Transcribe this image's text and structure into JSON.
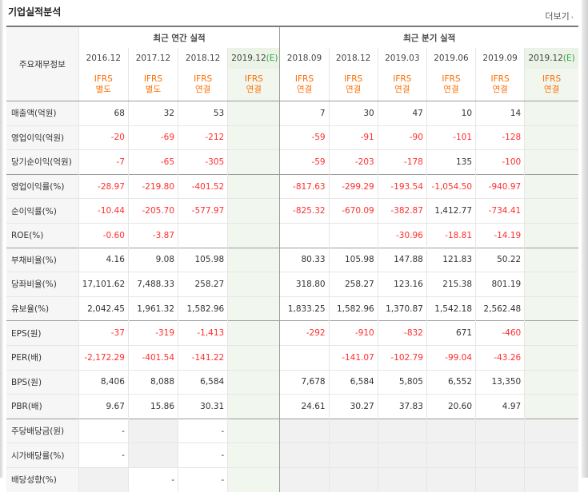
{
  "header": {
    "title": "기업실적분석",
    "more_label": "더보기",
    "more_arrow": "›"
  },
  "table": {
    "corner_label": "주요재무정보",
    "annual_label": "최근 연간 실적",
    "quarter_label": "최근 분기 실적",
    "columns": [
      {
        "period": "2016.12",
        "estimate": false,
        "type_top": "IFRS",
        "type_bottom": "별도"
      },
      {
        "period": "2017.12",
        "estimate": false,
        "type_top": "IFRS",
        "type_bottom": "별도"
      },
      {
        "period": "2018.12",
        "estimate": false,
        "type_top": "IFRS",
        "type_bottom": "연결"
      },
      {
        "period": "2019.12",
        "estimate": true,
        "est_mark": "(E)",
        "type_top": "IFRS",
        "type_bottom": "연결"
      },
      {
        "period": "2018.09",
        "estimate": false,
        "type_top": "IFRS",
        "type_bottom": "연결"
      },
      {
        "period": "2018.12",
        "estimate": false,
        "type_top": "IFRS",
        "type_bottom": "연결"
      },
      {
        "period": "2019.03",
        "estimate": false,
        "type_top": "IFRS",
        "type_bottom": "연결"
      },
      {
        "period": "2019.06",
        "estimate": false,
        "type_top": "IFRS",
        "type_bottom": "연결"
      },
      {
        "period": "2019.09",
        "estimate": false,
        "type_top": "IFRS",
        "type_bottom": "연결"
      },
      {
        "period": "2019.12",
        "estimate": true,
        "est_mark": "(E)",
        "type_top": "IFRS",
        "type_bottom": "연결"
      }
    ],
    "rows": [
      {
        "label": "매출액(억원)",
        "values": [
          "68",
          "32",
          "53",
          "",
          "7",
          "30",
          "47",
          "10",
          "14",
          ""
        ]
      },
      {
        "label": "영업이익(억원)",
        "values": [
          "-20",
          "-69",
          "-212",
          "",
          "-59",
          "-91",
          "-90",
          "-101",
          "-128",
          ""
        ]
      },
      {
        "label": "당기순이익(억원)",
        "values": [
          "-7",
          "-65",
          "-305",
          "",
          "-59",
          "-203",
          "-178",
          "135",
          "-100",
          ""
        ]
      },
      {
        "label": "영업이익률(%)",
        "values": [
          "-28.97",
          "-219.80",
          "-401.52",
          "",
          "-817.63",
          "-299.29",
          "-193.54",
          "-1,054.50",
          "-940.97",
          ""
        ]
      },
      {
        "label": "순이익률(%)",
        "values": [
          "-10.44",
          "-205.70",
          "-577.97",
          "",
          "-825.32",
          "-670.09",
          "-382.87",
          "1,412.77",
          "-734.41",
          ""
        ]
      },
      {
        "label": "ROE(%)",
        "values": [
          "-0.60",
          "-3.87",
          "",
          "",
          "",
          "",
          "-30.96",
          "-18.81",
          "-14.19",
          ""
        ]
      },
      {
        "label": "부채비율(%)",
        "values": [
          "4.16",
          "9.08",
          "105.98",
          "",
          "80.33",
          "105.98",
          "147.88",
          "121.83",
          "50.22",
          ""
        ]
      },
      {
        "label": "당좌비율(%)",
        "values": [
          "17,101.62",
          "7,488.33",
          "258.27",
          "",
          "318.80",
          "258.27",
          "123.16",
          "215.38",
          "801.19",
          ""
        ]
      },
      {
        "label": "유보율(%)",
        "values": [
          "2,042.45",
          "1,961.32",
          "1,582.96",
          "",
          "1,833.25",
          "1,582.96",
          "1,370.87",
          "1,542.18",
          "2,562.48",
          ""
        ]
      },
      {
        "label": "EPS(원)",
        "values": [
          "-37",
          "-319",
          "-1,413",
          "",
          "-292",
          "-910",
          "-832",
          "671",
          "-460",
          ""
        ]
      },
      {
        "label": "PER(배)",
        "values": [
          "-2,172.29",
          "-401.54",
          "-141.22",
          "",
          "",
          "-141.07",
          "-102.79",
          "-99.04",
          "-43.26",
          ""
        ]
      },
      {
        "label": "BPS(원)",
        "values": [
          "8,406",
          "8,088",
          "6,584",
          "",
          "7,678",
          "6,584",
          "5,805",
          "6,552",
          "13,350",
          ""
        ]
      },
      {
        "label": "PBR(배)",
        "values": [
          "9.67",
          "15.86",
          "30.31",
          "",
          "24.61",
          "30.27",
          "37.83",
          "20.60",
          "4.97",
          ""
        ]
      },
      {
        "label": "주당배당금(원)",
        "values": [
          "-",
          "",
          "-",
          "",
          "",
          "",
          "",
          "",
          "",
          ""
        ]
      },
      {
        "label": "시가배당률(%)",
        "values": [
          "-",
          "",
          "-",
          "",
          "",
          "",
          "",
          "",
          "",
          ""
        ]
      },
      {
        "label": "배당성향(%)",
        "values": [
          "",
          "-",
          "-",
          "",
          "",
          "",
          "",
          "",
          "",
          ""
        ]
      }
    ]
  },
  "colors": {
    "negative": "#ff2d2d",
    "ifrs": "#ff6d00",
    "estimate_bg": "#f1f7ef",
    "estimate_mark": "#31a64b"
  }
}
